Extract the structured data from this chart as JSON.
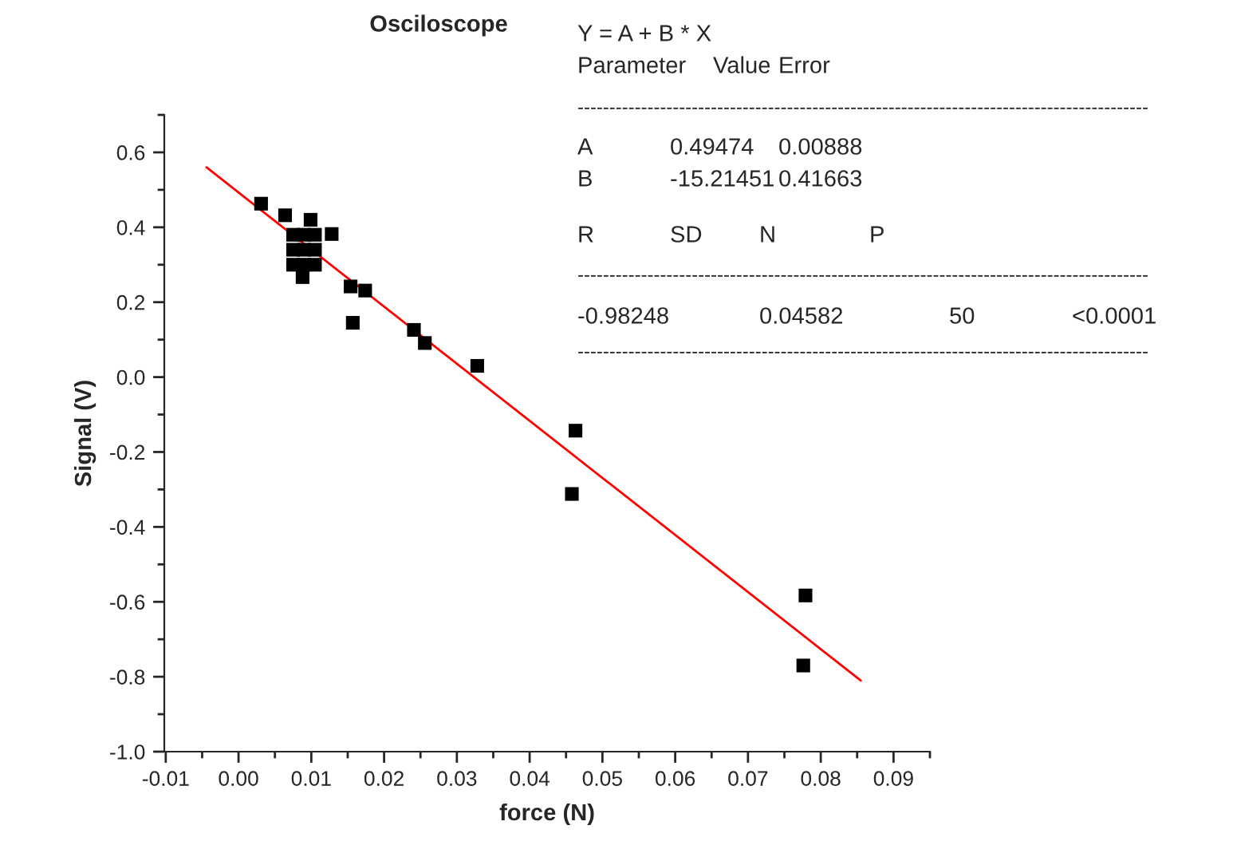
{
  "chart_data": {
    "type": "scatter",
    "title": "Osciloscope",
    "xlabel": "force (N)",
    "ylabel": "Signal (V)",
    "xlim": [
      -0.0102,
      0.095
    ],
    "xticks": [
      -0.01,
      {
        "value": 0,
        "label": "0.00"
      },
      0.01,
      0.02,
      0.03,
      0.04,
      0.05,
      0.06,
      0.07,
      0.08,
      0.09
    ],
    "ylim": [
      -1.0,
      0.7
    ],
    "yticks": [
      {
        "value": -1,
        "label": "-1.0"
      },
      -0.8,
      -0.6,
      -0.4,
      -0.2,
      {
        "value": 0,
        "label": "0.0"
      },
      0.2,
      0.4,
      0.6
    ],
    "grid": false,
    "legend": false,
    "series": [
      {
        "color": "#000000",
        "marker": "square",
        "x": [
          0.0031,
          0.0064,
          0.0099,
          0.0128,
          0.0088,
          0.0154,
          0.0174,
          0.0157,
          0.0241,
          0.0256,
          0.0328,
          0.0463,
          0.0458,
          0.0779,
          0.0776,
          0.0075,
          0.009,
          0.0105,
          0.0075,
          0.009,
          0.0105,
          0.0075,
          0.009,
          0.0105
        ],
        "values": [
          0.463,
          0.432,
          0.42,
          0.382,
          0.267,
          0.242,
          0.231,
          0.145,
          0.126,
          0.091,
          0.03,
          -0.143,
          -0.312,
          -0.583,
          -0.77,
          0.38,
          0.38,
          0.38,
          0.34,
          0.34,
          0.34,
          0.3,
          0.3,
          0.3
        ]
      },
      {
        "type": "line",
        "color": "#ff0000",
        "marker": "none",
        "x": [
          -0.0044,
          0.0855
        ],
        "values": [
          0.56,
          -0.81
        ]
      }
    ],
    "annotations": [
      "Y = A + B * X",
      "Parameter",
      "Value",
      "Error",
      "------------------------------------------------------------------------------------------",
      "A",
      "0.49474",
      "0.00888",
      "B",
      "-15.21451",
      "0.41663",
      "R",
      "SD",
      "N",
      "P",
      "------------------------------------------------------------------------------------------",
      "-0.98248",
      "0.04582",
      "50",
      "<0.0001",
      "------------------------------------------------------------------------------------------"
    ]
  }
}
